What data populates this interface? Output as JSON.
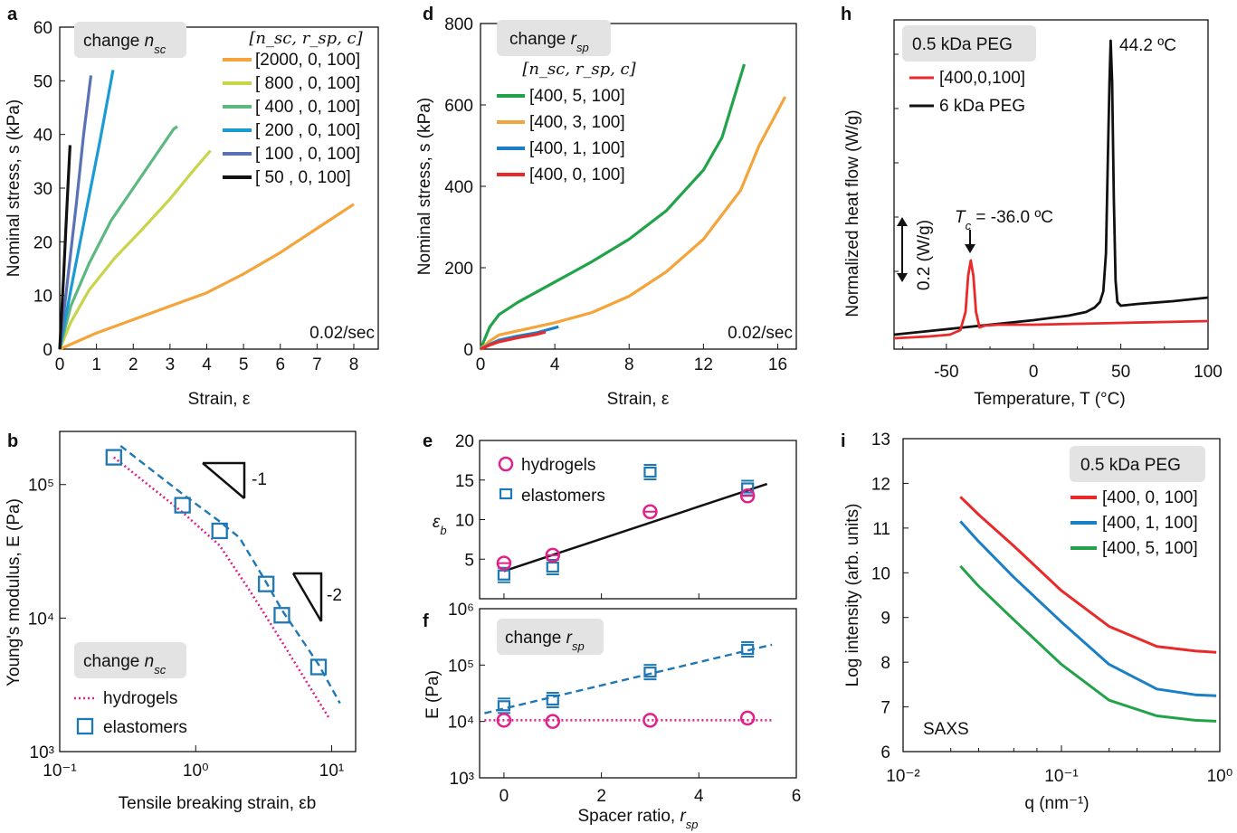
{
  "chart_data": [
    {
      "panel": "a",
      "type": "line",
      "xlabel": "Strain, ε",
      "ylabel": "Nominal stress, s (kPa)",
      "xlim": [
        0,
        9
      ],
      "ylim": [
        0,
        60
      ],
      "xticks": [
        0,
        1,
        2,
        3,
        4,
        5,
        6,
        7,
        8
      ],
      "yticks": [
        0,
        10,
        20,
        30,
        40,
        50,
        60
      ],
      "box_label": "change n_sc",
      "legend_header": "[n_sc, r_sp, c]",
      "annotation": "0.02/sec",
      "series": [
        {
          "name": "[2000, 0, 100]",
          "color": "#f4a43a",
          "x": [
            0,
            0.5,
            1,
            2,
            3,
            4,
            5,
            6,
            7,
            8
          ],
          "y": [
            0,
            1.5,
            3,
            5.5,
            8,
            10.5,
            14,
            18,
            22.5,
            27
          ]
        },
        {
          "name": "[ 800 , 0, 100]",
          "color": "#c8d44a",
          "x": [
            0,
            0.3,
            0.8,
            1.5,
            2.2,
            3,
            3.6,
            4.1
          ],
          "y": [
            0,
            5,
            11,
            17,
            22,
            28,
            33,
            37
          ]
        },
        {
          "name": "[ 400 , 0, 100]",
          "color": "#5cb880",
          "x": [
            0,
            0.3,
            0.8,
            1.4,
            2,
            2.6,
            3.1,
            3.2
          ],
          "y": [
            0,
            8,
            16,
            24,
            30,
            36,
            41,
            41.5
          ]
        },
        {
          "name": "[ 200 , 0, 100]",
          "color": "#1a9bd4",
          "x": [
            0,
            0.3,
            0.7,
            1.1,
            1.45
          ],
          "y": [
            0,
            11,
            25,
            39,
            52
          ]
        },
        {
          "name": "[ 100 , 0, 100]",
          "color": "#5a72b5",
          "x": [
            0,
            0.2,
            0.45,
            0.65,
            0.85
          ],
          "y": [
            0,
            12,
            27,
            40,
            51
          ]
        },
        {
          "name": "[  50  , 0, 100]",
          "color": "#111111",
          "x": [
            0,
            0.1,
            0.2,
            0.28
          ],
          "y": [
            0,
            13,
            27,
            38
          ]
        }
      ]
    },
    {
      "panel": "b",
      "type": "scatter",
      "xlabel": "Tensile breaking strain, εb",
      "ylabel": "Young's modulus, E (Pa)",
      "xscale": "log",
      "yscale": "log",
      "xlim": [
        0.1,
        15
      ],
      "ylim": [
        1000,
        250000
      ],
      "xticks": [
        "10⁻¹",
        "10⁰",
        "10¹"
      ],
      "yticks": [
        "10³",
        "10⁴",
        "10⁵"
      ],
      "box_label": "change n_sc",
      "slope_labels": [
        "-1",
        "-2"
      ],
      "series": [
        {
          "name": "hydrogels",
          "style": "dotted line",
          "color": "#e0218a",
          "x": [
            0.25,
            0.8,
            1.5,
            2.5,
            4,
            9.5
          ],
          "y": [
            160000,
            62000,
            35000,
            16000,
            7500,
            1800
          ]
        },
        {
          "name": "elastomers",
          "style": "open squares + dashed fit",
          "color": "#1f78b4",
          "x": [
            0.25,
            0.8,
            1.5,
            3.3,
            4.3,
            8.0
          ],
          "y": [
            160000,
            70000,
            45000,
            18000,
            10500,
            4300
          ]
        }
      ]
    },
    {
      "panel": "d",
      "type": "line",
      "xlabel": "Strain, ε",
      "ylabel": "Nominal stress, s (kPa)",
      "xlim": [
        0,
        17
      ],
      "ylim": [
        0,
        800
      ],
      "xticks": [
        0,
        4,
        8,
        12,
        16
      ],
      "yticks": [
        0,
        200,
        400,
        600,
        800
      ],
      "box_label": "change r_sp",
      "legend_header": "[n_sc, r_sp, c]",
      "annotation": "0.02/sec",
      "series": [
        {
          "name": "[400, 5, 100]",
          "color": "#22a34a",
          "x": [
            0,
            0.5,
            1,
            2,
            4,
            6,
            8,
            10,
            12,
            13,
            14.2
          ],
          "y": [
            0,
            55,
            85,
            115,
            165,
            215,
            270,
            340,
            440,
            520,
            700
          ]
        },
        {
          "name": "[400, 3, 100]",
          "color": "#f4a43a",
          "x": [
            0,
            0.5,
            1,
            2,
            4,
            6,
            8,
            10,
            12,
            14,
            15,
            16.4
          ],
          "y": [
            0,
            20,
            35,
            45,
            65,
            90,
            130,
            190,
            270,
            390,
            500,
            620
          ]
        },
        {
          "name": "[400, 1, 100]",
          "color": "#1a7fc4",
          "x": [
            0,
            0.5,
            1,
            2,
            3,
            4.2
          ],
          "y": [
            0,
            12,
            22,
            32,
            40,
            55
          ]
        },
        {
          "name": "[400, 0, 100]",
          "color": "#e82a2a",
          "x": [
            0,
            0.5,
            1,
            2,
            3,
            3.5
          ],
          "y": [
            0,
            10,
            18,
            28,
            36,
            42
          ]
        }
      ]
    },
    {
      "panel": "e",
      "type": "scatter",
      "xlabel": "",
      "ylabel": "εb",
      "xlim": [
        -0.5,
        6
      ],
      "ylim": [
        0,
        20
      ],
      "yticks": [
        5,
        10,
        15,
        20
      ],
      "series": [
        {
          "name": "hydrogels",
          "color": "#e0218a",
          "x": [
            0,
            1,
            3,
            5
          ],
          "y": [
            4.5,
            5.5,
            11,
            13
          ]
        },
        {
          "name": "elastomers",
          "color": "#1f78b4",
          "x": [
            0,
            1,
            3,
            5
          ],
          "y": [
            3,
            4,
            16,
            14
          ]
        },
        {
          "name": "fit",
          "color": "#111111",
          "x": [
            0,
            5.4
          ],
          "y": [
            3.5,
            14.5
          ]
        }
      ]
    },
    {
      "panel": "f",
      "type": "scatter",
      "xlabel": "Spacer ratio, r_sp",
      "ylabel": "E (Pa)",
      "yscale": "log",
      "xlim": [
        -0.5,
        6
      ],
      "ylim": [
        1000,
        1000000
      ],
      "xticks": [
        0,
        2,
        4,
        6
      ],
      "yticks": [
        "10³",
        "10⁴",
        "10⁵",
        "10⁶"
      ],
      "box_label": "change r_sp",
      "series": [
        {
          "name": "hydrogels",
          "color": "#e0218a",
          "x": [
            0,
            1,
            3,
            5
          ],
          "y": [
            10500,
            10000,
            10500,
            11500
          ]
        },
        {
          "name": "elastomers",
          "color": "#1f78b4",
          "x": [
            0,
            1,
            3,
            5
          ],
          "y": [
            19000,
            24000,
            75000,
            190000
          ]
        }
      ]
    },
    {
      "panel": "h",
      "type": "line",
      "xlabel": "Temperature, T (°C)",
      "ylabel": "Normalized heat flow (W/g)",
      "xlim": [
        -80,
        100
      ],
      "xticks": [
        -50,
        0,
        50,
        100
      ],
      "box_label": "0.5 kDa PEG",
      "annotations": [
        "44.2 ºC",
        "Tc = -36.0 ºC",
        "0.2 (W/g)"
      ],
      "series": [
        {
          "name": "[400,0,100]",
          "color": "#e82a2a"
        },
        {
          "name": "6 kDa PEG",
          "color": "#111111"
        }
      ]
    },
    {
      "panel": "i",
      "type": "line",
      "xlabel": "q (nm⁻¹)",
      "ylabel": "Log intensity (arb. units)",
      "xscale": "log",
      "xlim": [
        0.01,
        1
      ],
      "ylim": [
        6,
        13
      ],
      "xticks": [
        "10⁻²",
        "10⁻¹",
        "10⁰"
      ],
      "yticks": [
        6,
        7,
        8,
        9,
        10,
        11,
        12,
        13
      ],
      "box_label": "0.5 kDa PEG",
      "annotation": "SAXS",
      "series": [
        {
          "name": "[400, 0, 100]",
          "color": "#e82a2a",
          "x": [
            0.023,
            0.03,
            0.05,
            0.1,
            0.2,
            0.4,
            0.7,
            0.95
          ],
          "y": [
            11.7,
            11.3,
            10.6,
            9.6,
            8.8,
            8.35,
            8.25,
            8.22
          ]
        },
        {
          "name": "[400, 1, 100]",
          "color": "#1a7fc4",
          "x": [
            0.023,
            0.03,
            0.05,
            0.1,
            0.2,
            0.4,
            0.7,
            0.95
          ],
          "y": [
            11.15,
            10.7,
            9.9,
            8.9,
            7.95,
            7.4,
            7.27,
            7.25
          ]
        },
        {
          "name": "[400, 5, 100]",
          "color": "#22a34a",
          "x": [
            0.023,
            0.03,
            0.05,
            0.1,
            0.2,
            0.4,
            0.7,
            0.95
          ],
          "y": [
            10.15,
            9.7,
            8.95,
            7.95,
            7.15,
            6.8,
            6.7,
            6.68
          ]
        }
      ]
    }
  ]
}
